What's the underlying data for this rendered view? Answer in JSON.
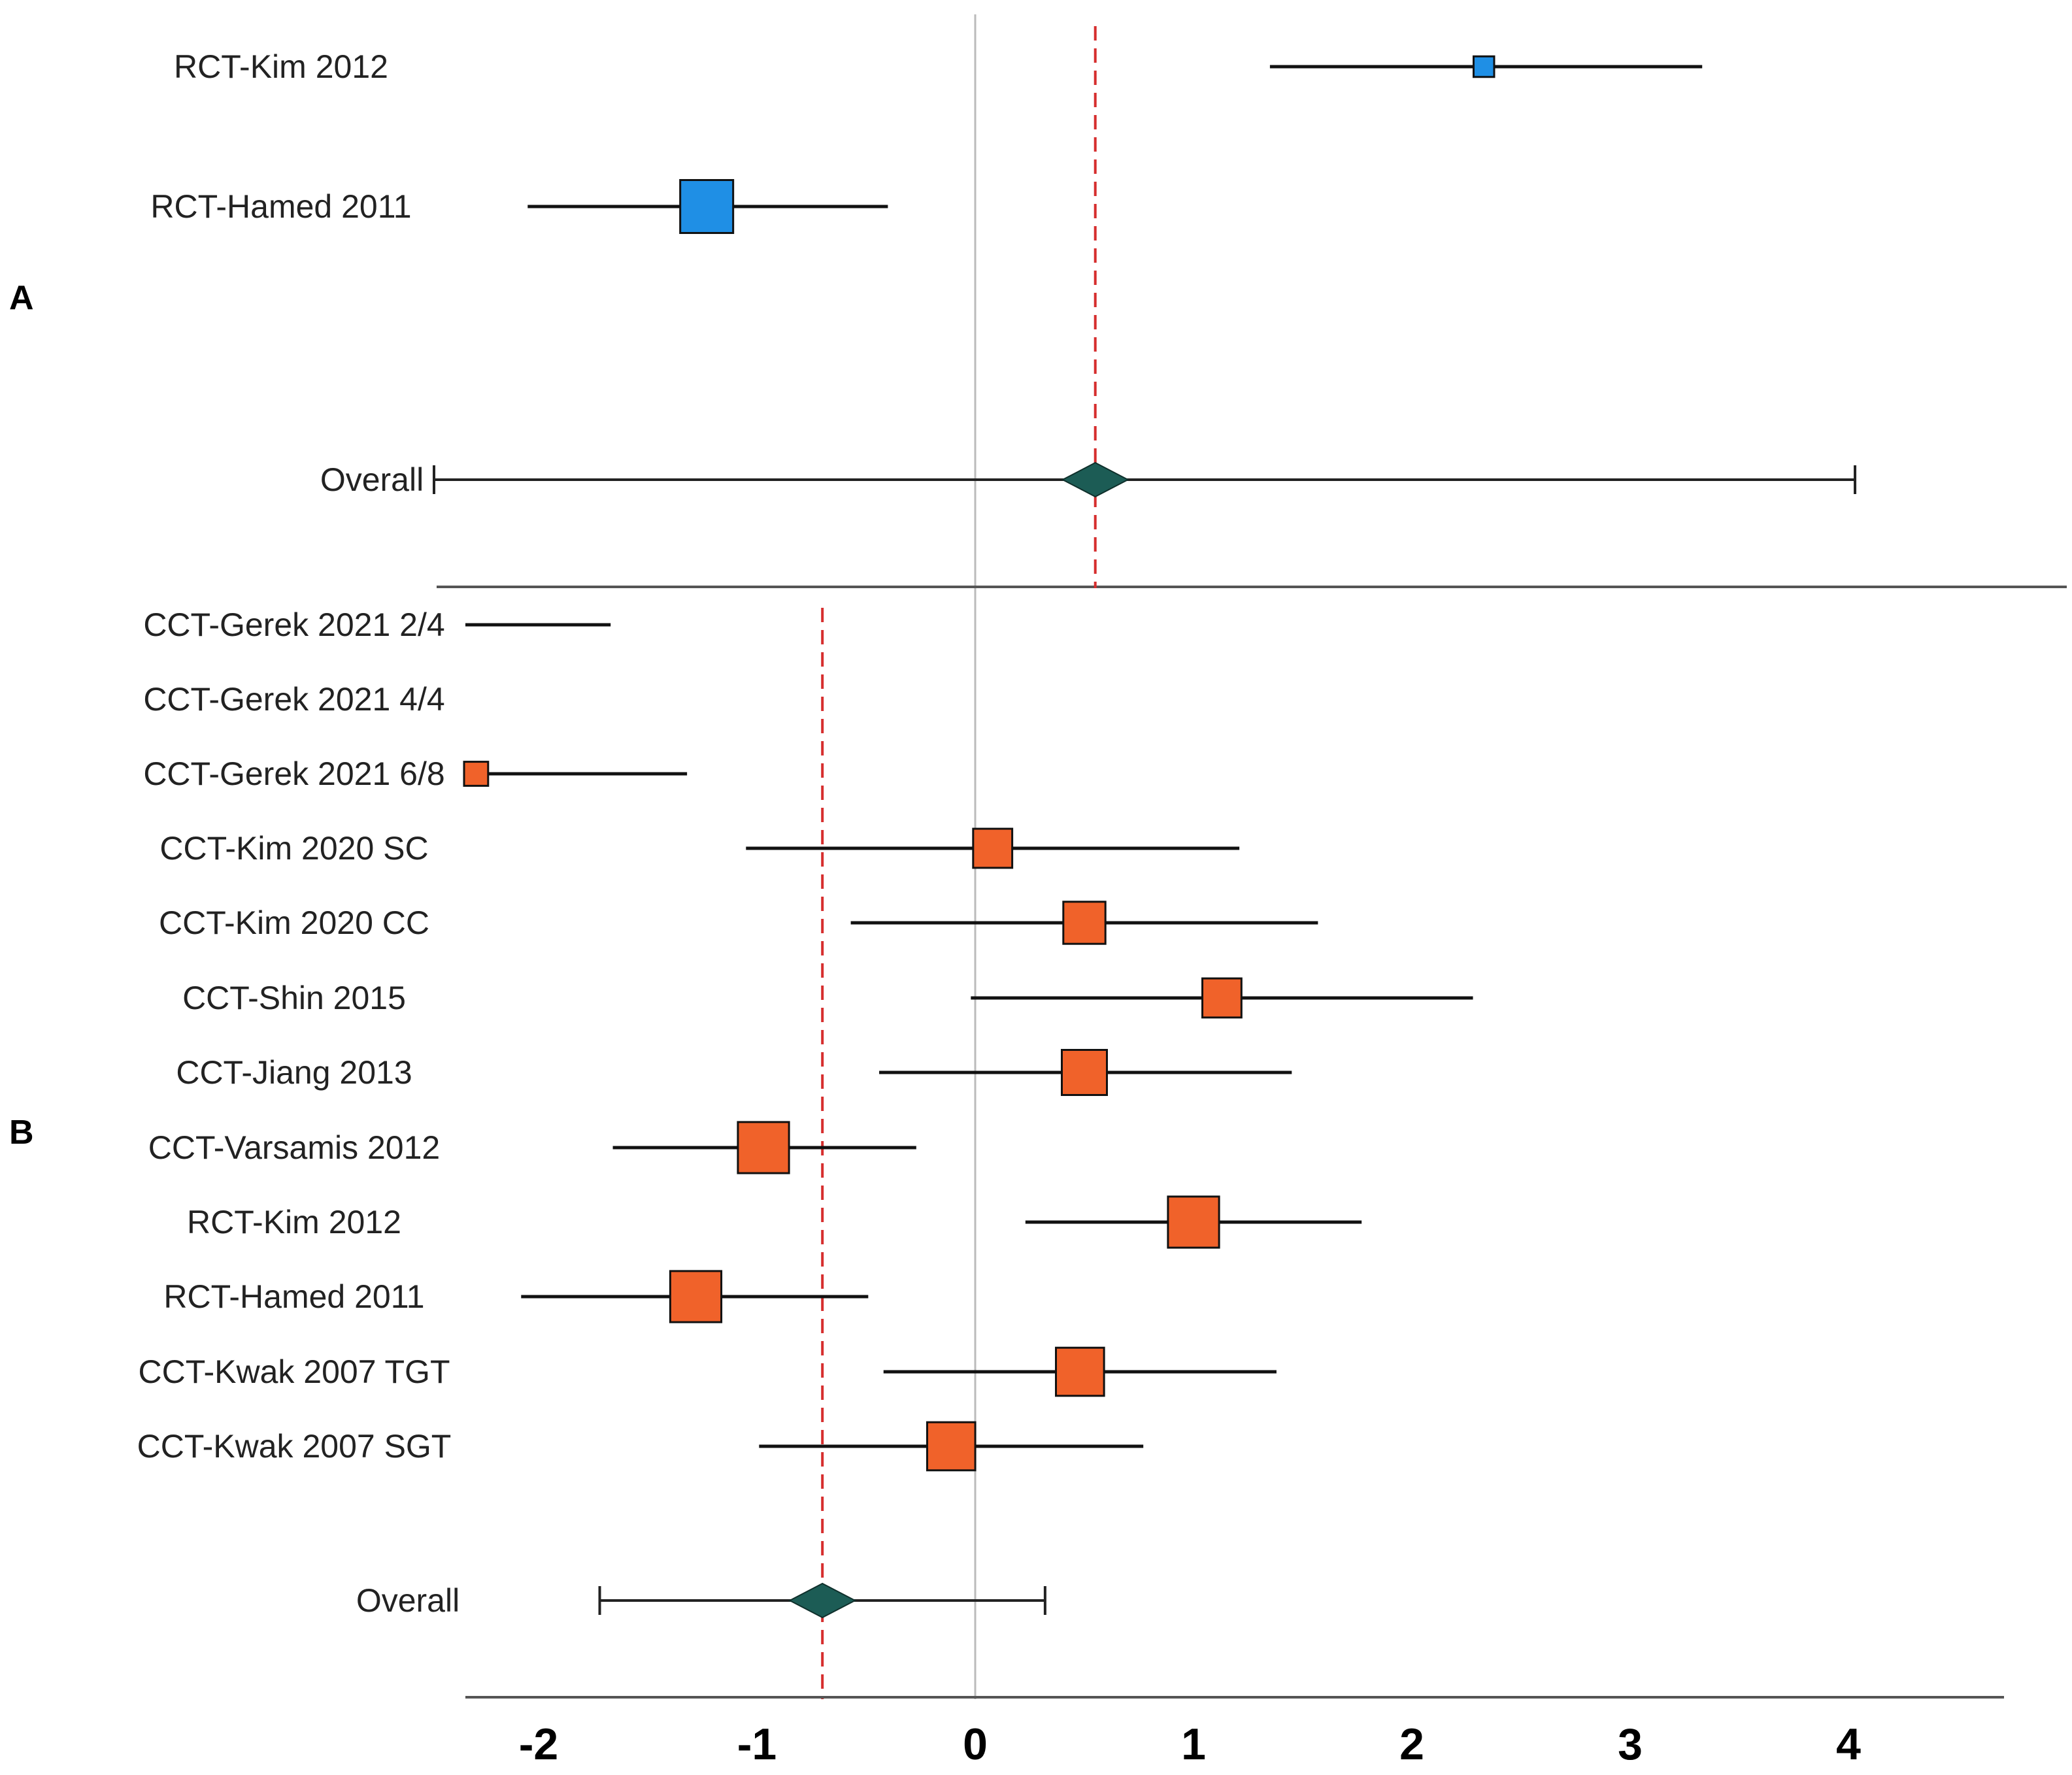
{
  "chart_data": {
    "type": "forest",
    "x_axis": {
      "ticks": [
        -2,
        -1,
        0,
        1,
        2,
        3,
        4
      ],
      "tick_labels": [
        "-2",
        "-1",
        "0",
        "1",
        "2",
        "3",
        "4"
      ],
      "range": [
        -2.35,
        4.7
      ]
    },
    "colors": {
      "panel_a_box": "#1f8fe5",
      "panel_b_box": "#f0622a",
      "diamond": "#1c5c55",
      "reference_line": "#d62e2e",
      "zero_line": "#bbbbbb",
      "axis": "#555555"
    },
    "panels": [
      {
        "label": "A",
        "pooled_line": 0.55,
        "studies": [
          {
            "name": "RCT-Kim 2012",
            "estimate": 2.33,
            "ci_low": 1.35,
            "ci_high": 3.33,
            "weight": 0.35
          },
          {
            "name": "RCT-Hamed 2011",
            "estimate": -1.23,
            "ci_low": -2.05,
            "ci_high": -0.4,
            "weight": 0.9
          }
        ],
        "overall": {
          "name": "Overall",
          "estimate": 0.55,
          "ci_low": -2.5,
          "ci_high": 4.03
        }
      },
      {
        "label": "B",
        "pooled_line": -0.7,
        "studies": [
          {
            "name": "CCT-Gerek 2021 2/4",
            "estimate": null,
            "ci_low": -2.35,
            "ci_high": -1.67,
            "weight": 0
          },
          {
            "name": "CCT-Gerek 2021 4/4",
            "estimate": null,
            "ci_low": null,
            "ci_high": null,
            "weight": 0
          },
          {
            "name": "CCT-Gerek 2021 6/8",
            "estimate": -2.3,
            "ci_low": -2.35,
            "ci_high": -1.32,
            "weight": 0.4
          },
          {
            "name": "CCT-Kim 2020 SC",
            "estimate": 0.08,
            "ci_low": -1.05,
            "ci_high": 1.21,
            "weight": 0.65
          },
          {
            "name": "CCT-Kim 2020 CC",
            "estimate": 0.5,
            "ci_low": -0.57,
            "ci_high": 1.57,
            "weight": 0.7
          },
          {
            "name": "CCT-Shin 2015",
            "estimate": 1.13,
            "ci_low": -0.02,
            "ci_high": 2.28,
            "weight": 0.65
          },
          {
            "name": "CCT-Jiang 2013",
            "estimate": 0.5,
            "ci_low": -0.44,
            "ci_high": 1.45,
            "weight": 0.75
          },
          {
            "name": "CCT-Varsamis 2012",
            "estimate": -0.97,
            "ci_low": -1.66,
            "ci_high": -0.27,
            "weight": 0.85
          },
          {
            "name": "RCT-Kim 2012",
            "estimate": 1.0,
            "ci_low": 0.23,
            "ci_high": 1.77,
            "weight": 0.85
          },
          {
            "name": "RCT-Hamed 2011",
            "estimate": -1.28,
            "ci_low": -2.08,
            "ci_high": -0.49,
            "weight": 0.85
          },
          {
            "name": "CCT-Kwak 2007 TGT",
            "estimate": 0.48,
            "ci_low": -0.42,
            "ci_high": 1.38,
            "weight": 0.8
          },
          {
            "name": "CCT-Kwak 2007 SGT",
            "estimate": -0.11,
            "ci_low": -0.99,
            "ci_high": 0.77,
            "weight": 0.8
          }
        ],
        "overall": {
          "name": "Overall",
          "estimate": -0.7,
          "ci_low": -1.72,
          "ci_high": 0.32
        }
      }
    ]
  }
}
